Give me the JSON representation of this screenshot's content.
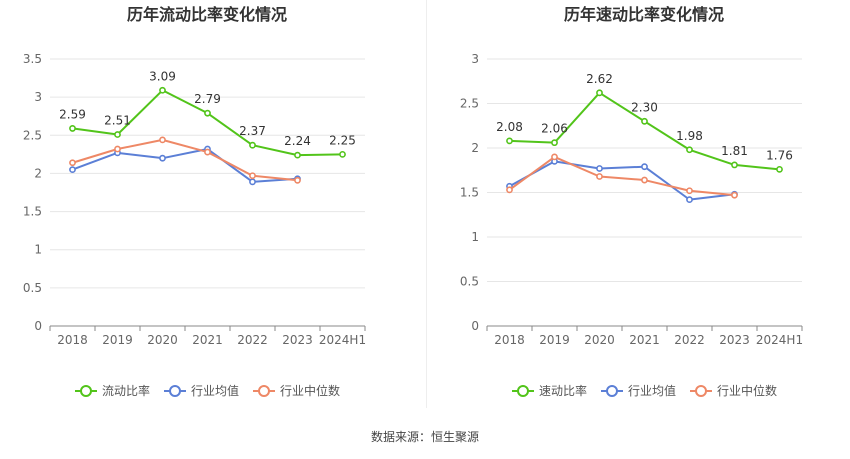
{
  "colors": {
    "primary": "#52c41a",
    "industry_avg": "#5b7fd6",
    "industry_median": "#ee8866",
    "grid": "#e6e6e6",
    "axis_text": "#666666",
    "title_text": "#333333"
  },
  "source_text": "数据来源：恒生聚源",
  "chart_data": [
    {
      "type": "line",
      "title": "历年流动比率变化情况",
      "categories": [
        "2018",
        "2019",
        "2020",
        "2021",
        "2022",
        "2023",
        "2024H1"
      ],
      "ylim": [
        0,
        3.5
      ],
      "yticks": [
        "0",
        "0.5",
        "1",
        "1.5",
        "2",
        "2.5",
        "3",
        "3.5"
      ],
      "ytick_values": [
        0,
        0.5,
        1,
        1.5,
        2,
        2.5,
        3,
        3.5
      ],
      "grid": true,
      "legend_position": "bottom",
      "series": [
        {
          "name": "流动比率",
          "values": [
            2.59,
            2.51,
            3.09,
            2.79,
            2.37,
            2.24,
            2.25
          ],
          "labels": [
            "2.59",
            "2.51",
            "3.09",
            "2.79",
            "2.37",
            "2.24",
            "2.25"
          ],
          "color": "#52c41a"
        },
        {
          "name": "行业均值",
          "values": [
            2.05,
            2.27,
            2.2,
            2.32,
            1.89,
            1.93,
            null
          ],
          "color": "#5b7fd6"
        },
        {
          "name": "行业中位数",
          "values": [
            2.14,
            2.32,
            2.44,
            2.28,
            1.97,
            1.91,
            null
          ],
          "color": "#ee8866"
        }
      ]
    },
    {
      "type": "line",
      "title": "历年速动比率变化情况",
      "categories": [
        "2018",
        "2019",
        "2020",
        "2021",
        "2022",
        "2023",
        "2024H1"
      ],
      "ylim": [
        0,
        3
      ],
      "yticks": [
        "0",
        "0.5",
        "1",
        "1.5",
        "2",
        "2.5",
        "3"
      ],
      "ytick_values": [
        0,
        0.5,
        1,
        1.5,
        2,
        2.5,
        3
      ],
      "grid": true,
      "legend_position": "bottom",
      "series": [
        {
          "name": "速动比率",
          "values": [
            2.08,
            2.06,
            2.62,
            2.3,
            1.98,
            1.81,
            1.76
          ],
          "labels": [
            "2.08",
            "2.06",
            "2.62",
            "2.30",
            "1.98",
            "1.81",
            "1.76"
          ],
          "color": "#52c41a"
        },
        {
          "name": "行业均值",
          "values": [
            1.57,
            1.85,
            1.77,
            1.79,
            1.42,
            1.48,
            null
          ],
          "color": "#5b7fd6"
        },
        {
          "name": "行业中位数",
          "values": [
            1.53,
            1.9,
            1.68,
            1.64,
            1.52,
            1.47,
            null
          ],
          "color": "#ee8866"
        }
      ]
    }
  ]
}
